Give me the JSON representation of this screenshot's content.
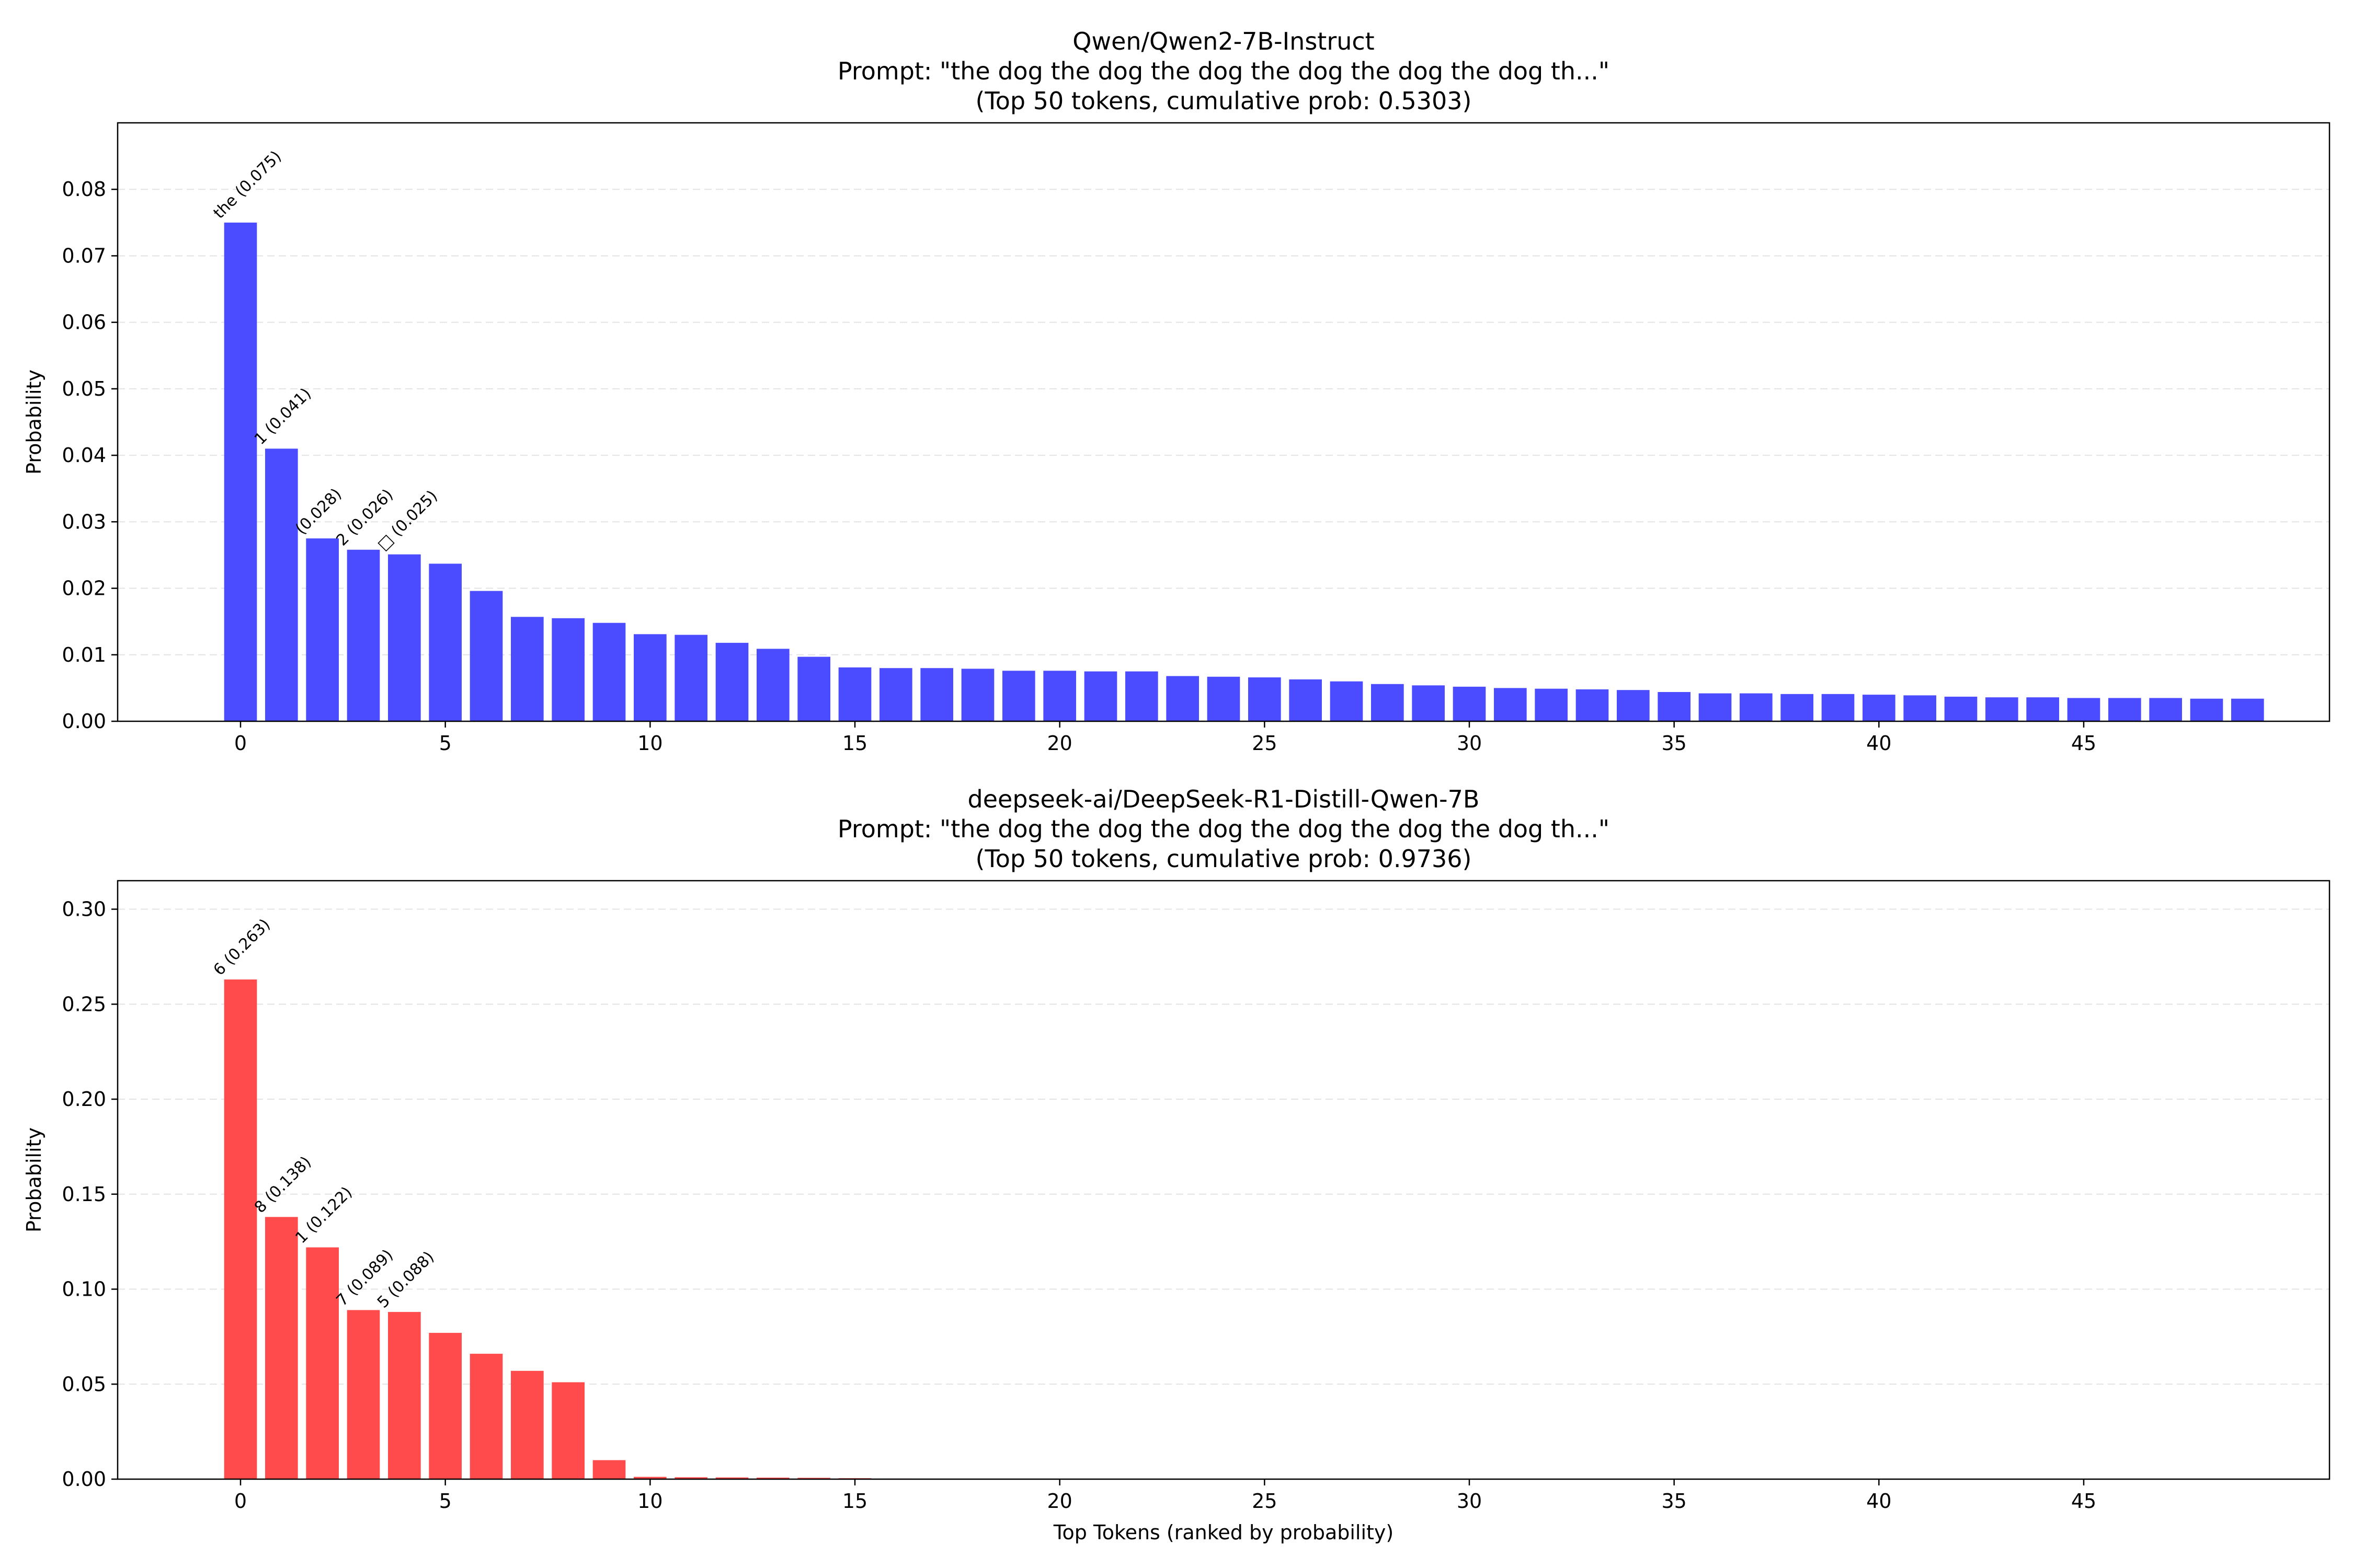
{
  "chart_data": [
    {
      "type": "bar",
      "title_lines": [
        "Qwen/Qwen2-7B-Instruct",
        "Prompt: \"the dog the dog the dog the dog the dog the dog th...\"",
        "(Top 50 tokens, cumulative prob: 0.5303)"
      ],
      "xlabel": "",
      "ylabel": "Probability",
      "ylim": [
        0,
        0.09
      ],
      "yticks": [
        "0.00",
        "0.01",
        "0.02",
        "0.03",
        "0.04",
        "0.05",
        "0.06",
        "0.07",
        "0.08"
      ],
      "xlim": [
        -3,
        51
      ],
      "xticks": [
        0,
        5,
        10,
        15,
        20,
        25,
        30,
        35,
        40,
        45
      ],
      "grid": "horizontal dashed",
      "color": "#4b4bff",
      "x": [
        0,
        1,
        2,
        3,
        4,
        5,
        6,
        7,
        8,
        9,
        10,
        11,
        12,
        13,
        14,
        15,
        16,
        17,
        18,
        19,
        20,
        21,
        22,
        23,
        24,
        25,
        26,
        27,
        28,
        29,
        30,
        31,
        32,
        33,
        34,
        35,
        36,
        37,
        38,
        39,
        40,
        41,
        42,
        43,
        44,
        45,
        46,
        47,
        48,
        49
      ],
      "values": [
        0.075,
        0.041,
        0.0275,
        0.0258,
        0.0251,
        0.0237,
        0.0196,
        0.0157,
        0.0155,
        0.0148,
        0.0131,
        0.013,
        0.0118,
        0.0109,
        0.0097,
        0.0081,
        0.008,
        0.008,
        0.0079,
        0.0076,
        0.0076,
        0.0075,
        0.0075,
        0.0068,
        0.0067,
        0.0066,
        0.0063,
        0.006,
        0.0056,
        0.0054,
        0.0052,
        0.005,
        0.0049,
        0.0048,
        0.0047,
        0.0044,
        0.0042,
        0.0042,
        0.0041,
        0.0041,
        0.004,
        0.0039,
        0.0037,
        0.0036,
        0.0036,
        0.0035,
        0.0035,
        0.0035,
        0.0034,
        0.0034
      ],
      "annotations": [
        {
          "index": 0,
          "text": "the (0.075)"
        },
        {
          "index": 1,
          "text": "1 (0.041)"
        },
        {
          "index": 2,
          "text": "(0.028)"
        },
        {
          "index": 3,
          "text": "2 (0.026)"
        },
        {
          "index": 4,
          "text": "□ (0.025)"
        }
      ]
    },
    {
      "type": "bar",
      "title_lines": [
        "deepseek-ai/DeepSeek-R1-Distill-Qwen-7B",
        "Prompt: \"the dog the dog the dog the dog the dog the dog th...\"",
        "(Top 50 tokens, cumulative prob: 0.9736)"
      ],
      "xlabel": "Top Tokens (ranked by probability)",
      "ylabel": "Probability",
      "ylim": [
        0,
        0.315
      ],
      "yticks": [
        "0.00",
        "0.05",
        "0.10",
        "0.15",
        "0.20",
        "0.25",
        "0.30"
      ],
      "xlim": [
        -3,
        51
      ],
      "xticks": [
        0,
        5,
        10,
        15,
        20,
        25,
        30,
        35,
        40,
        45
      ],
      "grid": "horizontal dashed",
      "color": "#ff4b4b",
      "x": [
        0,
        1,
        2,
        3,
        4,
        5,
        6,
        7,
        8,
        9,
        10,
        11,
        12,
        13,
        14,
        15,
        16,
        17,
        18,
        19,
        20,
        21,
        22,
        23,
        24,
        25,
        26,
        27,
        28,
        29,
        30,
        31,
        32,
        33,
        34,
        35,
        36,
        37,
        38,
        39,
        40,
        41,
        42,
        43,
        44,
        45,
        46,
        47,
        48,
        49
      ],
      "values": [
        0.263,
        0.138,
        0.122,
        0.089,
        0.088,
        0.077,
        0.066,
        0.057,
        0.051,
        0.01,
        0.0012,
        0.001,
        0.0009,
        0.0008,
        0.0007,
        0.0005,
        0.0003,
        0.0002,
        0.0002,
        0.0001,
        0.0001,
        0.0001,
        0.0001,
        0.0001,
        0.0001,
        0.0001,
        0.0001,
        0.0001,
        0.0001,
        0.0001,
        0.0001,
        0.0001,
        0.0001,
        0.0001,
        0.0001,
        0.0001,
        0.0001,
        0.0001,
        0.0001,
        0.0001,
        0.0001,
        0.0001,
        0.0001,
        0.0001,
        0.0001,
        0.0001,
        0.0001,
        0.0001,
        0.0001,
        0.0001
      ],
      "annotations": [
        {
          "index": 0,
          "text": "6 (0.263)"
        },
        {
          "index": 1,
          "text": "8 (0.138)"
        },
        {
          "index": 2,
          "text": "1 (0.122)"
        },
        {
          "index": 3,
          "text": "7 (0.089)"
        },
        {
          "index": 4,
          "text": "5 (0.088)"
        }
      ]
    }
  ]
}
